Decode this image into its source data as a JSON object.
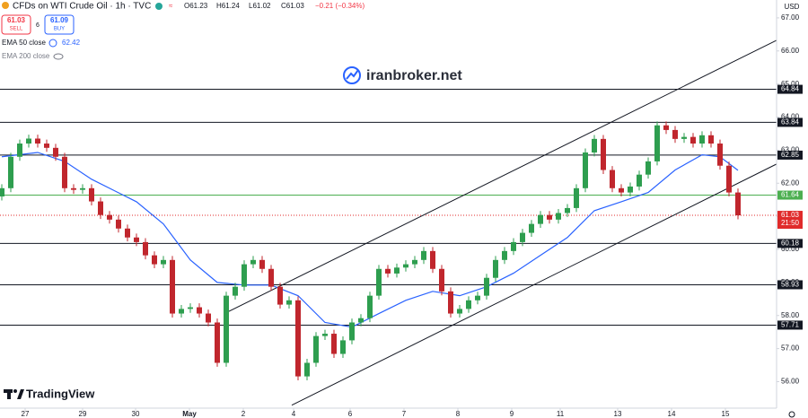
{
  "header": {
    "symbol": "CFDs on WTI Crude Oil · 1h · TVC",
    "ohlc": [
      "O61.23",
      "H61.24",
      "L61.02",
      "C61.03",
      "−0.21 (−0.34%)"
    ],
    "sell": {
      "price": "61.03",
      "label": "SELL"
    },
    "spread": "6",
    "buy": {
      "price": "61.09",
      "label": "BUY"
    },
    "ema200": "EMA 200 close",
    "watermark": "iranbroker.net",
    "logo": "TradingView"
  },
  "chart_data": {
    "type": "candlestick",
    "currency": "USD",
    "up_color": "#2e9e4f",
    "down_color": "#c0262d",
    "x": [
      0,
      1,
      2,
      3,
      4,
      5,
      6,
      7,
      8,
      9,
      10,
      11,
      12,
      13,
      14,
      15,
      16,
      17,
      18,
      19,
      20,
      21,
      22,
      23,
      24,
      25,
      26,
      27,
      28,
      29,
      30,
      31,
      32,
      33,
      34,
      35,
      36,
      37,
      38,
      39,
      40,
      41,
      42,
      43,
      44,
      45,
      46,
      47,
      48,
      49,
      50,
      51,
      52,
      53,
      54,
      55,
      56,
      57,
      58,
      59,
      60,
      61,
      62,
      63,
      64,
      65,
      66,
      67,
      68,
      69,
      70,
      71,
      72,
      73,
      74,
      75,
      76,
      77,
      78,
      79,
      80,
      81,
      82
    ],
    "open": [
      61.6,
      61.85,
      62.8,
      63.2,
      63.35,
      63.2,
      63.07,
      62.8,
      61.85,
      61.8,
      61.85,
      61.45,
      61.04,
      60.9,
      60.63,
      60.36,
      60.22,
      59.82,
      59.55,
      59.68,
      58.06,
      58.2,
      58.25,
      58.06,
      57.79,
      56.57,
      58.6,
      58.87,
      59.55,
      59.68,
      59.41,
      58.87,
      58.33,
      58.46,
      56.16,
      56.57,
      57.38,
      57.45,
      56.84,
      57.25,
      57.79,
      57.92,
      58.6,
      59.41,
      59.27,
      59.45,
      59.55,
      59.68,
      59.95,
      59.41,
      58.73,
      58.06,
      58.2,
      58.46,
      58.6,
      59.14,
      59.68,
      59.95,
      60.22,
      60.5,
      60.77,
      61.04,
      60.9,
      61.1,
      61.25,
      61.85,
      62.93,
      63.34,
      62.4,
      61.85,
      61.72,
      61.9,
      62.26,
      62.66,
      63.75,
      63.61,
      63.34,
      63.4,
      63.2,
      63.45,
      63.2,
      62.53,
      61.72
    ],
    "high": [
      61.97,
      62.92,
      63.32,
      63.47,
      63.47,
      63.32,
      63.19,
      62.92,
      61.97,
      61.97,
      61.97,
      61.57,
      61.16,
      61.02,
      60.75,
      60.48,
      60.34,
      59.94,
      59.8,
      59.8,
      58.32,
      58.37,
      58.37,
      58.18,
      57.91,
      58.72,
      58.99,
      59.67,
      59.8,
      59.8,
      59.53,
      58.99,
      58.58,
      58.58,
      56.69,
      57.5,
      57.57,
      57.57,
      57.37,
      57.91,
      58.04,
      58.72,
      59.53,
      59.53,
      59.57,
      59.67,
      59.8,
      60.07,
      60.07,
      59.53,
      58.85,
      58.32,
      58.58,
      58.72,
      59.26,
      59.8,
      60.07,
      60.34,
      60.62,
      60.89,
      61.16,
      61.16,
      61.22,
      61.37,
      61.97,
      63.05,
      63.46,
      63.46,
      62.52,
      61.97,
      62.02,
      62.38,
      62.78,
      63.87,
      63.87,
      63.73,
      63.52,
      63.52,
      63.57,
      63.57,
      63.32,
      62.65,
      61.84
    ],
    "low": [
      61.48,
      61.73,
      62.68,
      63.08,
      63.08,
      62.95,
      62.68,
      61.73,
      61.68,
      61.68,
      61.33,
      60.92,
      60.78,
      60.51,
      60.24,
      60.1,
      59.7,
      59.43,
      59.43,
      57.94,
      57.94,
      58.08,
      57.94,
      57.67,
      56.45,
      56.45,
      58.48,
      58.75,
      59.43,
      59.29,
      58.75,
      58.21,
      58.21,
      56.04,
      56.04,
      56.45,
      57.26,
      56.72,
      56.72,
      57.13,
      57.67,
      57.8,
      58.48,
      59.15,
      59.15,
      59.33,
      59.43,
      59.56,
      59.29,
      58.61,
      57.94,
      57.94,
      58.08,
      58.34,
      58.48,
      59.02,
      59.56,
      59.83,
      60.1,
      60.38,
      60.65,
      60.78,
      60.78,
      60.98,
      61.13,
      61.73,
      62.81,
      62.28,
      61.73,
      61.6,
      61.6,
      61.78,
      62.14,
      62.54,
      63.49,
      63.22,
      63.22,
      63.08,
      63.08,
      63.08,
      62.41,
      61.6,
      60.91
    ],
    "close": [
      61.85,
      62.8,
      63.2,
      63.35,
      63.2,
      63.07,
      62.8,
      61.85,
      61.8,
      61.85,
      61.45,
      61.04,
      60.9,
      60.63,
      60.36,
      60.22,
      59.82,
      59.55,
      59.68,
      58.06,
      58.2,
      58.25,
      58.06,
      57.79,
      56.57,
      58.6,
      58.87,
      59.55,
      59.68,
      59.41,
      58.87,
      58.33,
      58.46,
      56.16,
      56.57,
      57.38,
      57.45,
      56.84,
      57.25,
      57.79,
      57.92,
      58.6,
      59.41,
      59.27,
      59.45,
      59.55,
      59.68,
      59.95,
      59.41,
      58.73,
      58.06,
      58.2,
      58.46,
      58.6,
      59.14,
      59.68,
      59.95,
      60.22,
      60.5,
      60.77,
      61.04,
      60.9,
      61.1,
      61.25,
      61.85,
      62.93,
      63.34,
      62.4,
      61.85,
      61.72,
      61.9,
      62.26,
      62.66,
      63.75,
      63.61,
      63.34,
      63.4,
      63.2,
      63.45,
      63.2,
      62.53,
      61.72,
      61.03
    ],
    "xlim": [
      -0.2,
      86.3
    ],
    "xticks": [
      {
        "value": 2.6,
        "label": "27"
      },
      {
        "value": 9.0,
        "label": "29"
      },
      {
        "value": 14.9,
        "label": "30"
      },
      {
        "value": 20.9,
        "label": "May"
      },
      {
        "value": 26.9,
        "label": "2"
      },
      {
        "value": 32.5,
        "label": "4"
      },
      {
        "value": 38.8,
        "label": "6"
      },
      {
        "value": 44.8,
        "label": "7"
      },
      {
        "value": 50.8,
        "label": "8"
      },
      {
        "value": 56.8,
        "label": "9"
      },
      {
        "value": 62.2,
        "label": "11"
      },
      {
        "value": 68.6,
        "label": "13"
      },
      {
        "value": 74.6,
        "label": "14"
      },
      {
        "value": 80.6,
        "label": "15"
      }
    ],
    "ylim": [
      55.2,
      67.54
    ],
    "yticks": [
      {
        "value": 56,
        "label": "56.00"
      },
      {
        "value": 57,
        "label": "57.00"
      },
      {
        "value": 58,
        "label": "58.00"
      },
      {
        "value": 59,
        "label": "59.00"
      },
      {
        "value": 60,
        "label": "60.00"
      },
      {
        "value": 61,
        "label": "61.00"
      },
      {
        "value": 62,
        "label": "62.00"
      },
      {
        "value": 63,
        "label": "63.00"
      },
      {
        "value": 64,
        "label": "64.00"
      },
      {
        "value": 65,
        "label": "65.00"
      },
      {
        "value": 66,
        "label": "66.00"
      },
      {
        "value": 67,
        "label": "67.00"
      }
    ],
    "levels": [
      {
        "value": 64.84,
        "color": "#131722"
      },
      {
        "value": 63.84,
        "color": "#131722"
      },
      {
        "value": 62.85,
        "color": "#131722"
      },
      {
        "value": 61.64,
        "color": "#4caf50"
      },
      {
        "value": 60.18,
        "color": "#131722"
      },
      {
        "value": 58.93,
        "color": "#131722"
      },
      {
        "value": 57.71,
        "color": "#131722"
      }
    ],
    "current_price": {
      "value": 61.03,
      "countdown": "21:50",
      "color": "#e02a2a"
    },
    "ema": {
      "name": "EMA 50 close",
      "value": "62.42",
      "color": "#2962ff",
      "x": [
        0,
        4,
        7,
        10,
        15,
        18,
        21,
        24,
        27,
        30,
        33,
        36,
        39,
        42,
        45,
        48,
        51,
        54,
        57,
        60,
        63,
        66,
        69,
        72,
        75,
        78,
        80,
        82
      ],
      "values": [
        62.8,
        62.93,
        62.66,
        62.12,
        61.44,
        60.77,
        59.68,
        59.0,
        58.92,
        58.92,
        58.6,
        57.79,
        57.65,
        58.06,
        58.46,
        58.73,
        58.6,
        58.87,
        59.28,
        59.82,
        60.36,
        61.17,
        61.44,
        61.72,
        62.4,
        62.86,
        62.8,
        62.39
      ]
    },
    "trendlines": [
      {
        "x": [
          32.3,
          86.3
        ],
        "values": [
          55.29,
          62.58
        ]
      },
      {
        "x": [
          24.8,
          86.3
        ],
        "values": [
          58.06,
          66.32
        ]
      }
    ]
  }
}
